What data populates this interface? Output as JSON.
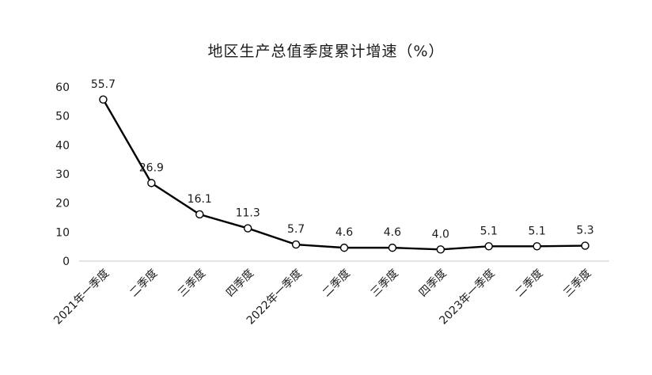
{
  "chart_data": {
    "type": "line",
    "title": "地区生产总值季度累计增速（%）",
    "categories": [
      "2021年一季度",
      "二季度",
      "三季度",
      "四季度",
      "2022年一季度",
      "二季度",
      "三季度",
      "四季度",
      "2023年一季度",
      "二季度",
      "三季度"
    ],
    "series": [
      {
        "values": [
          55.7,
          26.9,
          16.1,
          11.3,
          5.7,
          4.6,
          4.6,
          4.0,
          5.1,
          5.1,
          5.3
        ]
      }
    ],
    "data_labels": [
      "55.7",
      "26.9",
      "16.1",
      "11.3",
      "5.7",
      "4.6",
      "4.6",
      "4.0",
      "5.1",
      "5.1",
      "5.3"
    ],
    "y_ticks": [
      "0",
      "10",
      "20",
      "30",
      "40",
      "50",
      "60"
    ],
    "ylim": [
      0,
      60
    ],
    "grid": false,
    "legend": "none",
    "line_color": "#000000",
    "marker_fill": "#ffffff"
  }
}
